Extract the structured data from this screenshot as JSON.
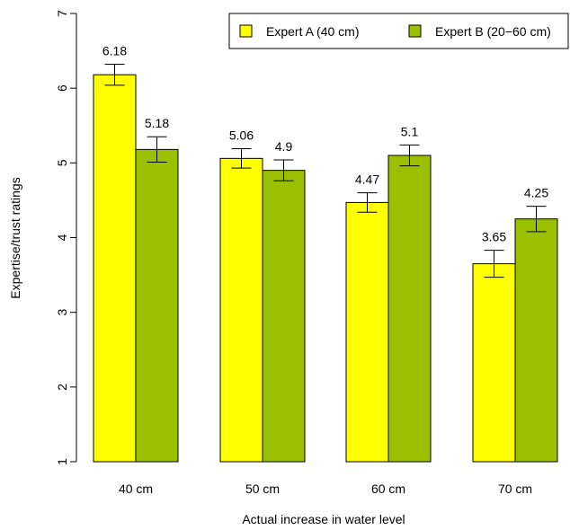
{
  "chart_data": {
    "type": "bar",
    "categories": [
      "40 cm",
      "50 cm",
      "60 cm",
      "70 cm"
    ],
    "series": [
      {
        "name": "Expert A (40 cm)",
        "color": "#ffff00",
        "values": [
          6.18,
          5.06,
          4.47,
          3.65
        ],
        "value_labels": [
          "6.18",
          "5.06",
          "4.47",
          "3.65"
        ],
        "error_low": [
          6.04,
          4.93,
          4.34,
          3.47
        ],
        "error_high": [
          6.32,
          5.19,
          4.6,
          3.83
        ]
      },
      {
        "name": "Expert B (20−60 cm)",
        "color": "#9ac000",
        "values": [
          5.18,
          4.9,
          5.1,
          4.25
        ],
        "value_labels": [
          "5.18",
          "4.9",
          "5.1",
          "4.25"
        ],
        "error_low": [
          5.01,
          4.76,
          4.96,
          4.08
        ],
        "error_high": [
          5.35,
          5.04,
          5.24,
          4.42
        ]
      }
    ],
    "xlabel": "Actual increase in water level",
    "ylabel": "Expertise/trust ratings",
    "ylim": [
      1,
      7
    ],
    "yticks": [
      1,
      2,
      3,
      4,
      5,
      6,
      7
    ],
    "grid": false,
    "legend_position": "top-right"
  }
}
